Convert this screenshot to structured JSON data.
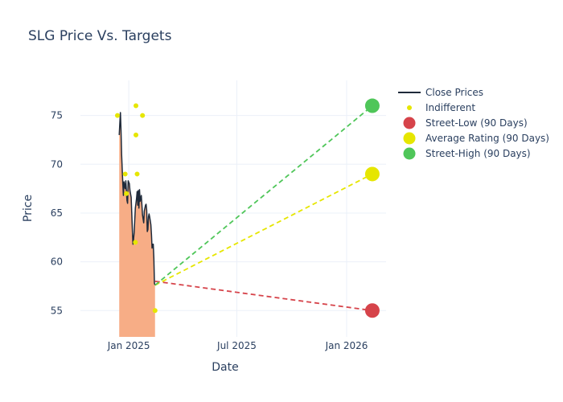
{
  "chart_data": {
    "type": "line",
    "title": "SLG Price Vs. Targets",
    "xlabel": "Date",
    "ylabel": "Price",
    "xlim": [
      "2024-10-12",
      "2026-03-08"
    ],
    "ylim": [
      52.3,
      78.6
    ],
    "x_ticks": [
      {
        "date": "2025-01-01",
        "label": "Jan 2025"
      },
      {
        "date": "2025-07-01",
        "label": "Jul 2025"
      },
      {
        "date": "2026-01-01",
        "label": "Jan 2026"
      }
    ],
    "y_ticks": [
      55,
      60,
      65,
      70,
      75
    ],
    "grid": true,
    "legend_position": "right",
    "series": [
      {
        "name": "Close Prices",
        "kind": "line-area",
        "line_color": "#1f2a3a",
        "fill_color": "#f7ad86",
        "points": [
          [
            "2024-12-16",
            73.0
          ],
          [
            "2024-12-17",
            74.2
          ],
          [
            "2024-12-18",
            75.3
          ],
          [
            "2024-12-19",
            73.5
          ],
          [
            "2024-12-20",
            71.0
          ],
          [
            "2024-12-22",
            68.0
          ],
          [
            "2024-12-23",
            66.8
          ],
          [
            "2024-12-24",
            68.2
          ],
          [
            "2024-12-26",
            67.5
          ],
          [
            "2024-12-27",
            68.3
          ],
          [
            "2024-12-29",
            66.3
          ],
          [
            "2024-12-30",
            66.0
          ],
          [
            "2024-12-31",
            68.3
          ],
          [
            "2025-01-02",
            68.0
          ],
          [
            "2025-01-03",
            67.3
          ],
          [
            "2025-01-05",
            66.6
          ],
          [
            "2025-01-07",
            63.3
          ],
          [
            "2025-01-08",
            61.8
          ],
          [
            "2025-01-09",
            62.3
          ],
          [
            "2025-01-10",
            63.0
          ],
          [
            "2025-01-12",
            65.5
          ],
          [
            "2025-01-14",
            66.5
          ],
          [
            "2025-01-15",
            67.2
          ],
          [
            "2025-01-16",
            65.8
          ],
          [
            "2025-01-17",
            67.3
          ],
          [
            "2025-01-18",
            65.5
          ],
          [
            "2025-01-19",
            67.4
          ],
          [
            "2025-01-20",
            66.2
          ],
          [
            "2025-01-22",
            66.8
          ],
          [
            "2025-01-23",
            65.8
          ],
          [
            "2025-01-24",
            64.8
          ],
          [
            "2025-01-26",
            64.0
          ],
          [
            "2025-01-27",
            65.2
          ],
          [
            "2025-01-29",
            65.8
          ],
          [
            "2025-01-30",
            65.9
          ],
          [
            "2025-01-31",
            65.3
          ],
          [
            "2025-02-01",
            63.1
          ],
          [
            "2025-02-02",
            63.3
          ],
          [
            "2025-02-03",
            64.6
          ],
          [
            "2025-02-04",
            64.9
          ],
          [
            "2025-02-05",
            64.6
          ],
          [
            "2025-02-06",
            64.2
          ],
          [
            "2025-02-07",
            63.8
          ],
          [
            "2025-02-08",
            62.8
          ],
          [
            "2025-02-09",
            61.4
          ],
          [
            "2025-02-10",
            61.8
          ],
          [
            "2025-02-11",
            61.8
          ],
          [
            "2025-02-12",
            60.4
          ],
          [
            "2025-02-13",
            57.8
          ],
          [
            "2025-02-14",
            57.6
          ]
        ]
      },
      {
        "name": "Indifferent",
        "kind": "markers",
        "color": "#e6e600",
        "points": [
          [
            "2024-12-13",
            75.0
          ],
          [
            "2024-12-26",
            69.0
          ],
          [
            "2024-12-28",
            67.0
          ],
          [
            "2025-01-12",
            62.0
          ],
          [
            "2025-01-13",
            76.0
          ],
          [
            "2025-01-13",
            73.0
          ],
          [
            "2025-01-15",
            69.0
          ],
          [
            "2025-01-24",
            75.0
          ],
          [
            "2025-02-14",
            55.0
          ]
        ]
      },
      {
        "name": "Street-Low (90 Days)",
        "kind": "target",
        "color": "#d6434a",
        "line_from": [
          "2025-02-14",
          58.0
        ],
        "target": [
          "2026-02-13",
          55.0
        ]
      },
      {
        "name": "Average Rating (90 Days)",
        "kind": "target",
        "color": "#e6e600",
        "line_from": [
          "2025-02-14",
          57.6
        ],
        "target": [
          "2026-02-13",
          69.0
        ]
      },
      {
        "name": "Street-High (90 Days)",
        "kind": "target",
        "color": "#4fc659",
        "line_from": [
          "2025-02-14",
          57.6
        ],
        "target": [
          "2026-02-13",
          76.0
        ]
      }
    ]
  }
}
